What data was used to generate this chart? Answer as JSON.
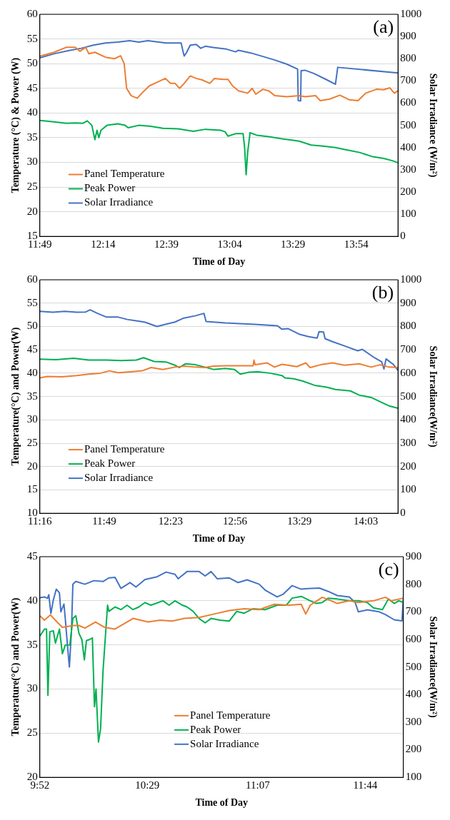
{
  "chart_data": [
    {
      "type": "line",
      "xlabel": "Time of Day",
      "ylabel": "Temperature (°C) & Power (W)",
      "y2label": "Solar Irradiance (W/m²)",
      "annotations": [
        "(a)"
      ],
      "grid": "y",
      "legend": "bottom left",
      "xlim": [
        11.8167,
        14.175
      ],
      "xticks": [
        {
          "value": 11.8167,
          "label": "11:49"
        },
        {
          "value": 12.2333,
          "label": "12:14"
        },
        {
          "value": 12.65,
          "label": "12:39"
        },
        {
          "value": 13.0667,
          "label": "13:04"
        },
        {
          "value": 13.4833,
          "label": "13:29"
        },
        {
          "value": 13.9,
          "label": "13:54"
        }
      ],
      "ylim": [
        15,
        60
      ],
      "yticks": [
        15,
        20,
        25,
        30,
        35,
        40,
        45,
        50,
        55,
        60
      ],
      "y2lim": [
        0,
        1000
      ],
      "y2ticks": [
        0,
        100,
        200,
        300,
        400,
        500,
        600,
        700,
        800,
        900,
        1000
      ],
      "series": [
        {
          "name": "Panel Temperature",
          "color": "#ed7d31",
          "x": [
            11.817,
            11.91,
            11.99,
            12.05,
            12.08,
            12.119,
            12.139,
            12.179,
            12.249,
            12.309,
            12.348,
            12.372,
            12.388,
            12.418,
            12.458,
            12.488,
            12.538,
            12.588,
            12.643,
            12.677,
            12.707,
            12.737,
            12.767,
            12.807,
            12.846,
            12.886,
            12.936,
            12.966,
            13.026,
            13.056,
            13.085,
            13.125,
            13.185,
            13.215,
            13.239,
            13.285,
            13.324,
            13.364,
            13.444,
            13.524,
            13.563,
            13.633,
            13.663,
            13.723,
            13.792,
            13.852,
            13.912,
            13.962,
            14.032,
            14.081,
            14.121,
            14.151,
            14.175
          ],
          "values": [
            51.5,
            52.3,
            53.3,
            53.3,
            52.5,
            53.3,
            52,
            52.3,
            51.3,
            51,
            51.6,
            50,
            45,
            43.5,
            43,
            44,
            45.5,
            46.2,
            47,
            46,
            46,
            45,
            46,
            47.5,
            47,
            46.7,
            46,
            47,
            46.8,
            46.8,
            45.5,
            44.5,
            44,
            45,
            43.8,
            44.8,
            44.5,
            43.5,
            43.3,
            43.5,
            43.3,
            43.5,
            42.5,
            42.8,
            43.6,
            42.7,
            42.5,
            44,
            44.8,
            44.7,
            45.1,
            44,
            44.5
          ]
        },
        {
          "name": "Peak Power",
          "color": "#00b050",
          "x": [
            11.817,
            11.91,
            11.99,
            12.05,
            12.099,
            12.129,
            12.159,
            12.179,
            12.193,
            12.205,
            12.219,
            12.259,
            12.329,
            12.378,
            12.398,
            12.468,
            12.548,
            12.627,
            12.727,
            12.827,
            12.906,
            13.006,
            13.036,
            13.056,
            13.105,
            13.155,
            13.165,
            13.175,
            13.185,
            13.201,
            13.245,
            13.324,
            13.404,
            13.524,
            13.603,
            13.683,
            13.763,
            13.842,
            13.922,
            14.002,
            14.081,
            14.141,
            14.175
          ],
          "values": [
            38.5,
            38.2,
            37.9,
            38,
            37.9,
            38.4,
            37.5,
            34.6,
            36.5,
            35,
            36.5,
            37.5,
            37.8,
            37.5,
            37,
            37.5,
            37.3,
            36.9,
            36.8,
            36.3,
            36.7,
            36.5,
            36.2,
            35.3,
            35.8,
            35.8,
            33,
            27.5,
            32,
            36,
            35.5,
            35.2,
            34.8,
            34.3,
            33.5,
            33.3,
            33,
            32.5,
            32,
            31.2,
            30.8,
            30.3,
            29.9
          ]
        },
        {
          "name": "Solar Irradiance",
          "color": "#4472c4",
          "axis": "y2",
          "x": [
            11.817,
            11.91,
            12.01,
            12.09,
            12.169,
            12.249,
            12.329,
            12.408,
            12.468,
            12.528,
            12.647,
            12.747,
            12.757,
            12.767,
            12.783,
            12.807,
            12.846,
            12.876,
            12.906,
            12.966,
            13.046,
            13.105,
            13.125,
            13.205,
            13.285,
            13.364,
            13.444,
            13.514,
            13.518,
            13.534,
            13.537,
            13.563,
            13.623,
            13.703,
            13.763,
            13.778,
            14.175
          ],
          "values": [
            804,
            822,
            837,
            847,
            861,
            871,
            875,
            881,
            875,
            881,
            871,
            871,
            840,
            812,
            828,
            861,
            864,
            847,
            856,
            850,
            843,
            831,
            838,
            826,
            810,
            794,
            775,
            753,
            611,
            610,
            746,
            748,
            733,
            706,
            685,
            761,
            736
          ]
        }
      ]
    },
    {
      "type": "line",
      "xlabel": "Time of Day",
      "ylabel": "Temperature(°C) and Power(W)",
      "y2label": "Solar Irradiance(W/m²)",
      "annotations": [
        "(b)"
      ],
      "grid": "y",
      "legend": "bottom left",
      "xlim": [
        11.2667,
        14.325
      ],
      "xticks": [
        {
          "value": 11.2667,
          "label": "11:16"
        },
        {
          "value": 11.8167,
          "label": "11:49"
        },
        {
          "value": 12.3833,
          "label": "12:23"
        },
        {
          "value": 12.9333,
          "label": "12:56"
        },
        {
          "value": 13.4833,
          "label": "13:29"
        },
        {
          "value": 14.05,
          "label": "14:03"
        }
      ],
      "ylim": [
        10,
        60
      ],
      "yticks": [
        10,
        15,
        20,
        25,
        30,
        35,
        40,
        45,
        50,
        55,
        60
      ],
      "y2lim": [
        0,
        1000
      ],
      "y2ticks": [
        0,
        100,
        200,
        300,
        400,
        500,
        600,
        700,
        800,
        900,
        1000
      ],
      "series": [
        {
          "name": "Panel Temperature",
          "color": "#ed7d31",
          "x": [
            11.267,
            11.328,
            11.455,
            11.582,
            11.683,
            11.785,
            11.861,
            11.937,
            12.039,
            12.14,
            12.217,
            12.318,
            12.42,
            12.496,
            12.597,
            12.674,
            12.75,
            12.851,
            12.978,
            13.088,
            13.095,
            13.105,
            13.207,
            13.27,
            13.334,
            13.461,
            13.537,
            13.575,
            13.664,
            13.766,
            13.867,
            13.994,
            14.096,
            14.172,
            14.248,
            14.325
          ],
          "values": [
            39,
            39.3,
            39.2,
            39.5,
            39.8,
            40,
            40.5,
            40.1,
            40.3,
            40.5,
            41.2,
            40.8,
            41.3,
            41.5,
            41.3,
            41.2,
            41.5,
            41.6,
            41.6,
            41.6,
            42.8,
            41.8,
            42.2,
            41.3,
            41.9,
            41.4,
            42.2,
            41.2,
            41.8,
            42.2,
            41.7,
            42,
            41.3,
            41.8,
            41.3,
            41.2
          ]
        },
        {
          "name": "Peak Power",
          "color": "#00b050",
          "x": [
            11.267,
            11.404,
            11.556,
            11.683,
            11.836,
            11.963,
            12.09,
            12.153,
            12.242,
            12.344,
            12.42,
            12.458,
            12.509,
            12.597,
            12.674,
            12.75,
            12.851,
            12.928,
            12.978,
            13.055,
            13.131,
            13.232,
            13.334,
            13.359,
            13.436,
            13.512,
            13.613,
            13.715,
            13.791,
            13.918,
            13.994,
            14.096,
            14.172,
            14.248,
            14.325
          ],
          "values": [
            43,
            42.9,
            43.2,
            42.8,
            42.8,
            42.7,
            42.8,
            43.3,
            42.5,
            42.4,
            41.7,
            41.2,
            42,
            41.8,
            41.3,
            40.8,
            41,
            40.8,
            39.8,
            40.2,
            40.3,
            40,
            39.5,
            39,
            38.8,
            38.3,
            37.4,
            37,
            36.5,
            36.2,
            35.3,
            34.8,
            33.9,
            33,
            32.5
          ]
        },
        {
          "name": "Solar Irradiance",
          "color": "#4472c4",
          "axis": "y2",
          "x": [
            11.267,
            11.378,
            11.48,
            11.582,
            11.658,
            11.696,
            11.759,
            11.836,
            11.937,
            12.013,
            12.09,
            12.166,
            12.267,
            12.344,
            12.42,
            12.496,
            12.597,
            12.668,
            12.686,
            12.851,
            13.105,
            13.296,
            13.334,
            13.385,
            13.486,
            13.562,
            13.634,
            13.651,
            13.689,
            13.702,
            13.766,
            13.867,
            13.981,
            14.02,
            14.121,
            14.185,
            14.205,
            14.223,
            14.286,
            14.325
          ],
          "values": [
            865,
            861,
            865,
            861,
            862,
            871,
            856,
            840,
            840,
            830,
            824,
            818,
            800,
            810,
            819,
            836,
            846,
            856,
            821,
            815,
            809,
            803,
            788,
            791,
            766,
            756,
            750,
            778,
            776,
            748,
            735,
            717,
            696,
            702,
            667,
            649,
            618,
            661,
            637,
            612
          ]
        }
      ]
    },
    {
      "type": "line",
      "xlabel": "Time of Day",
      "ylabel": "Temperature(°C) and Power(W)",
      "y2label": "Solar Irradiance(W/m²)",
      "annotations": [
        "(c)"
      ],
      "grid": "y",
      "legend": "bottom",
      "xlim": [
        9.8667,
        11.952
      ],
      "xticks": [
        {
          "value": 9.8667,
          "label": "9:52"
        },
        {
          "value": 10.4833,
          "label": "10:29"
        },
        {
          "value": 11.1167,
          "label": "11:07"
        },
        {
          "value": 11.7333,
          "label": "11:44"
        }
      ],
      "ylim": [
        20,
        45
      ],
      "yticks": [
        20,
        25,
        30,
        35,
        40,
        45
      ],
      "y2lim": [
        100,
        900
      ],
      "y2ticks": [
        100,
        200,
        300,
        400,
        500,
        600,
        700,
        800,
        900
      ],
      "series": [
        {
          "name": "Panel Temperature",
          "color": "#ed7d31",
          "x": [
            9.867,
            9.893,
            9.927,
            9.97,
            9.996,
            10.056,
            10.091,
            10.125,
            10.186,
            10.237,
            10.298,
            10.384,
            10.401,
            10.487,
            10.556,
            10.625,
            10.694,
            10.78,
            10.866,
            10.953,
            11.039,
            11.125,
            11.211,
            11.297,
            11.366,
            11.392,
            11.418,
            11.487,
            11.538,
            11.573,
            11.642,
            11.694,
            11.78,
            11.849,
            11.883,
            11.952
          ],
          "values": [
            38.3,
            37.8,
            38.4,
            37.5,
            37,
            37.2,
            37.2,
            36.9,
            37.6,
            37,
            36.8,
            37.8,
            38,
            37.6,
            37.8,
            37.7,
            38,
            38.1,
            38.5,
            38.9,
            39.1,
            39,
            39.6,
            39.5,
            39.6,
            38.5,
            39.5,
            40.4,
            40,
            39.7,
            40,
            39.8,
            40,
            40.4,
            40,
            40.3
          ]
        },
        {
          "name": "Peak Power",
          "color": "#00b050",
          "x": [
            9.867,
            9.893,
            9.905,
            9.913,
            9.924,
            9.944,
            9.956,
            9.979,
            9.996,
            10.013,
            10.039,
            10.056,
            10.073,
            10.091,
            10.108,
            10.122,
            10.134,
            10.151,
            10.168,
            10.18,
            10.189,
            10.203,
            10.215,
            10.229,
            10.255,
            10.263,
            10.298,
            10.332,
            10.367,
            10.401,
            10.435,
            10.47,
            10.504,
            10.573,
            10.608,
            10.642,
            10.685,
            10.711,
            10.746,
            10.78,
            10.815,
            10.849,
            10.901,
            10.953,
            10.996,
            11.039,
            11.09,
            11.159,
            11.228,
            11.28,
            11.314,
            11.366,
            11.418,
            11.452,
            11.487,
            11.521,
            11.573,
            11.642,
            11.694,
            11.745,
            11.78,
            11.832,
            11.866,
            11.9,
            11.926,
            11.952
          ],
          "values": [
            36,
            36.8,
            36.8,
            29.3,
            36.5,
            36.6,
            35.2,
            36.8,
            34,
            35,
            35,
            38,
            38.3,
            36.3,
            35.6,
            33.3,
            35.5,
            35.6,
            35.8,
            28,
            30,
            24,
            25.5,
            32,
            39.5,
            38.8,
            39.3,
            39,
            39.5,
            39,
            39.3,
            39.8,
            39.5,
            40,
            39.5,
            40,
            39.5,
            39.3,
            38.8,
            38,
            37.5,
            38,
            37.8,
            37.7,
            38.8,
            38.6,
            39.1,
            39,
            39.5,
            39.5,
            40.3,
            40.5,
            40,
            39.7,
            39.8,
            40.3,
            40.2,
            40,
            40,
            39.8,
            39.2,
            39,
            40.2,
            39.7,
            40,
            39.8
          ]
        },
        {
          "name": "Solar Irradiance",
          "color": "#4472c4",
          "axis": "y2",
          "x": [
            9.867,
            9.893,
            9.91,
            9.918,
            9.93,
            9.944,
            9.961,
            9.979,
            9.987,
            10.005,
            10.013,
            10.025,
            10.036,
            10.048,
            10.056,
            10.073,
            10.125,
            10.177,
            10.229,
            10.263,
            10.298,
            10.332,
            10.384,
            10.418,
            10.47,
            10.539,
            10.591,
            10.642,
            10.66,
            10.711,
            10.78,
            10.815,
            10.849,
            10.884,
            10.953,
            11.004,
            11.056,
            11.125,
            11.159,
            11.228,
            11.263,
            11.314,
            11.366,
            11.401,
            11.47,
            11.521,
            11.573,
            11.642,
            11.676,
            11.694,
            11.745,
            11.814,
            11.849,
            11.9,
            11.944,
            11.952
          ],
          "values": [
            751,
            754,
            749,
            762,
            694,
            743,
            782,
            769,
            700,
            728,
            672,
            579,
            500,
            631,
            800,
            810,
            800,
            813,
            810,
            823,
            825,
            785,
            806,
            790,
            817,
            827,
            844,
            836,
            820,
            846,
            846,
            830,
            846,
            820,
            823,
            806,
            816,
            800,
            779,
            754,
            764,
            795,
            782,
            784,
            786,
            774,
            759,
            754,
            733,
            700,
            707,
            700,
            690,
            671,
            667,
            754
          ]
        }
      ]
    }
  ]
}
